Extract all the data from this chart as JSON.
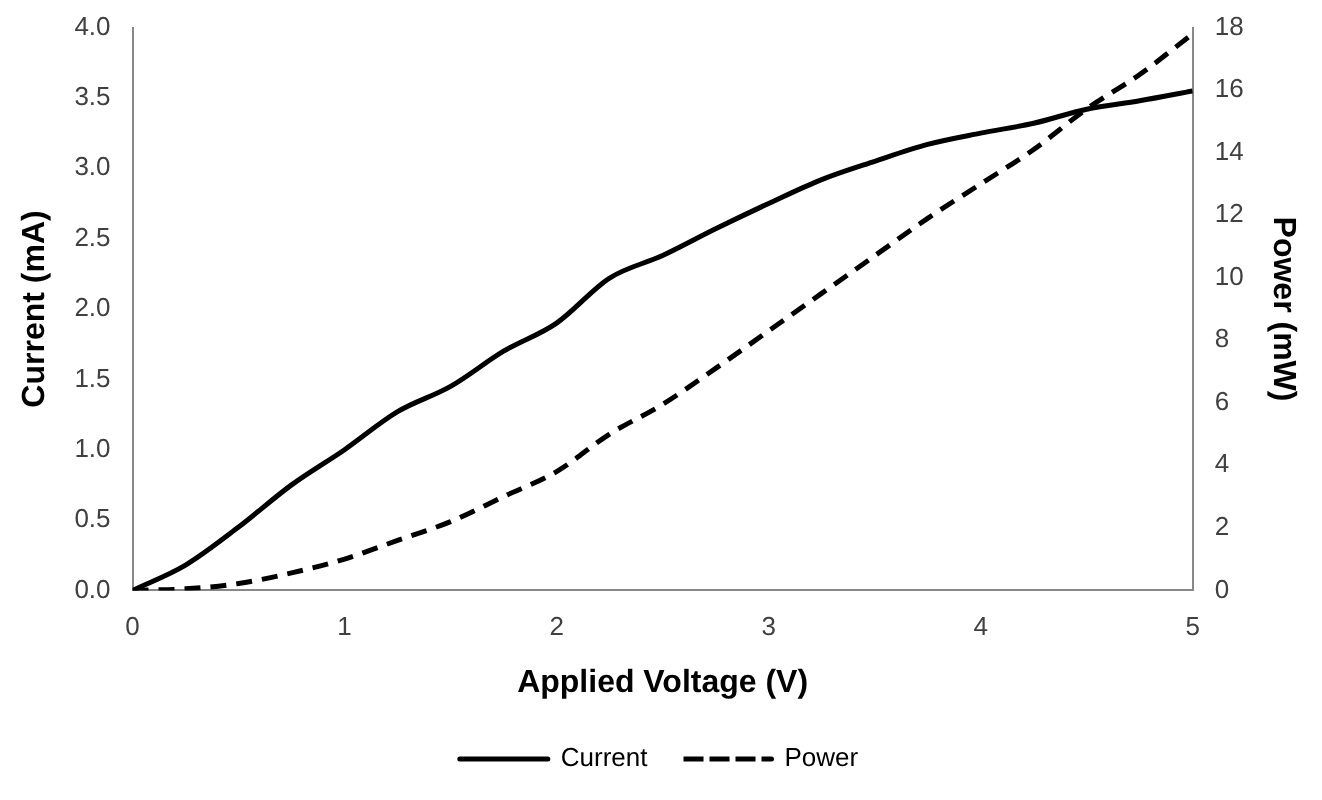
{
  "chart_data": {
    "type": "line",
    "xlabel": "Applied Voltage (V)",
    "ylabel": "Current (mA)",
    "y2label": "Power (mW)",
    "x": [
      0,
      0.25,
      0.5,
      0.75,
      1,
      1.25,
      1.5,
      1.75,
      2,
      2.25,
      2.5,
      2.75,
      3,
      3.25,
      3.5,
      3.75,
      4,
      4.25,
      4.5,
      4.75,
      5
    ],
    "series": [
      {
        "name": "Current",
        "color": "#000000",
        "line_style": "solid",
        "values": [
          0,
          0.18,
          0.45,
          0.75,
          1.0,
          1.27,
          1.45,
          1.7,
          1.9,
          2.22,
          2.38,
          2.57,
          2.75,
          2.92,
          3.05,
          3.17,
          3.25,
          3.32,
          3.42,
          3.48,
          3.55
        ]
      },
      {
        "name": "Power",
        "color": "#000000",
        "line_style": "dashed",
        "axis": "y2",
        "values": [
          0,
          0.05,
          0.22,
          0.56,
          1.0,
          1.6,
          2.2,
          3.0,
          3.8,
          5.0,
          5.95,
          7.1,
          8.3,
          9.5,
          10.7,
          11.9,
          13.0,
          14.1,
          15.4,
          16.5,
          17.8
        ]
      }
    ],
    "xlim": [
      0,
      5
    ],
    "xticks": [
      0,
      1,
      2,
      3,
      4,
      5
    ],
    "ylim": [
      0,
      4
    ],
    "yticks": [
      {
        "value": 0,
        "label": "0.0"
      },
      0.5,
      {
        "value": 1,
        "label": "1.0"
      },
      1.5,
      {
        "value": 2,
        "label": "2.0"
      },
      2.5,
      {
        "value": 3,
        "label": "3.0"
      },
      3.5,
      {
        "value": 4,
        "label": "4.0"
      }
    ],
    "y2lim": [
      0,
      18
    ],
    "y2ticks": [
      0,
      2,
      4,
      6,
      8,
      10,
      12,
      14,
      16,
      18
    ],
    "grid": false,
    "legend": "bottom",
    "marker": "none"
  }
}
